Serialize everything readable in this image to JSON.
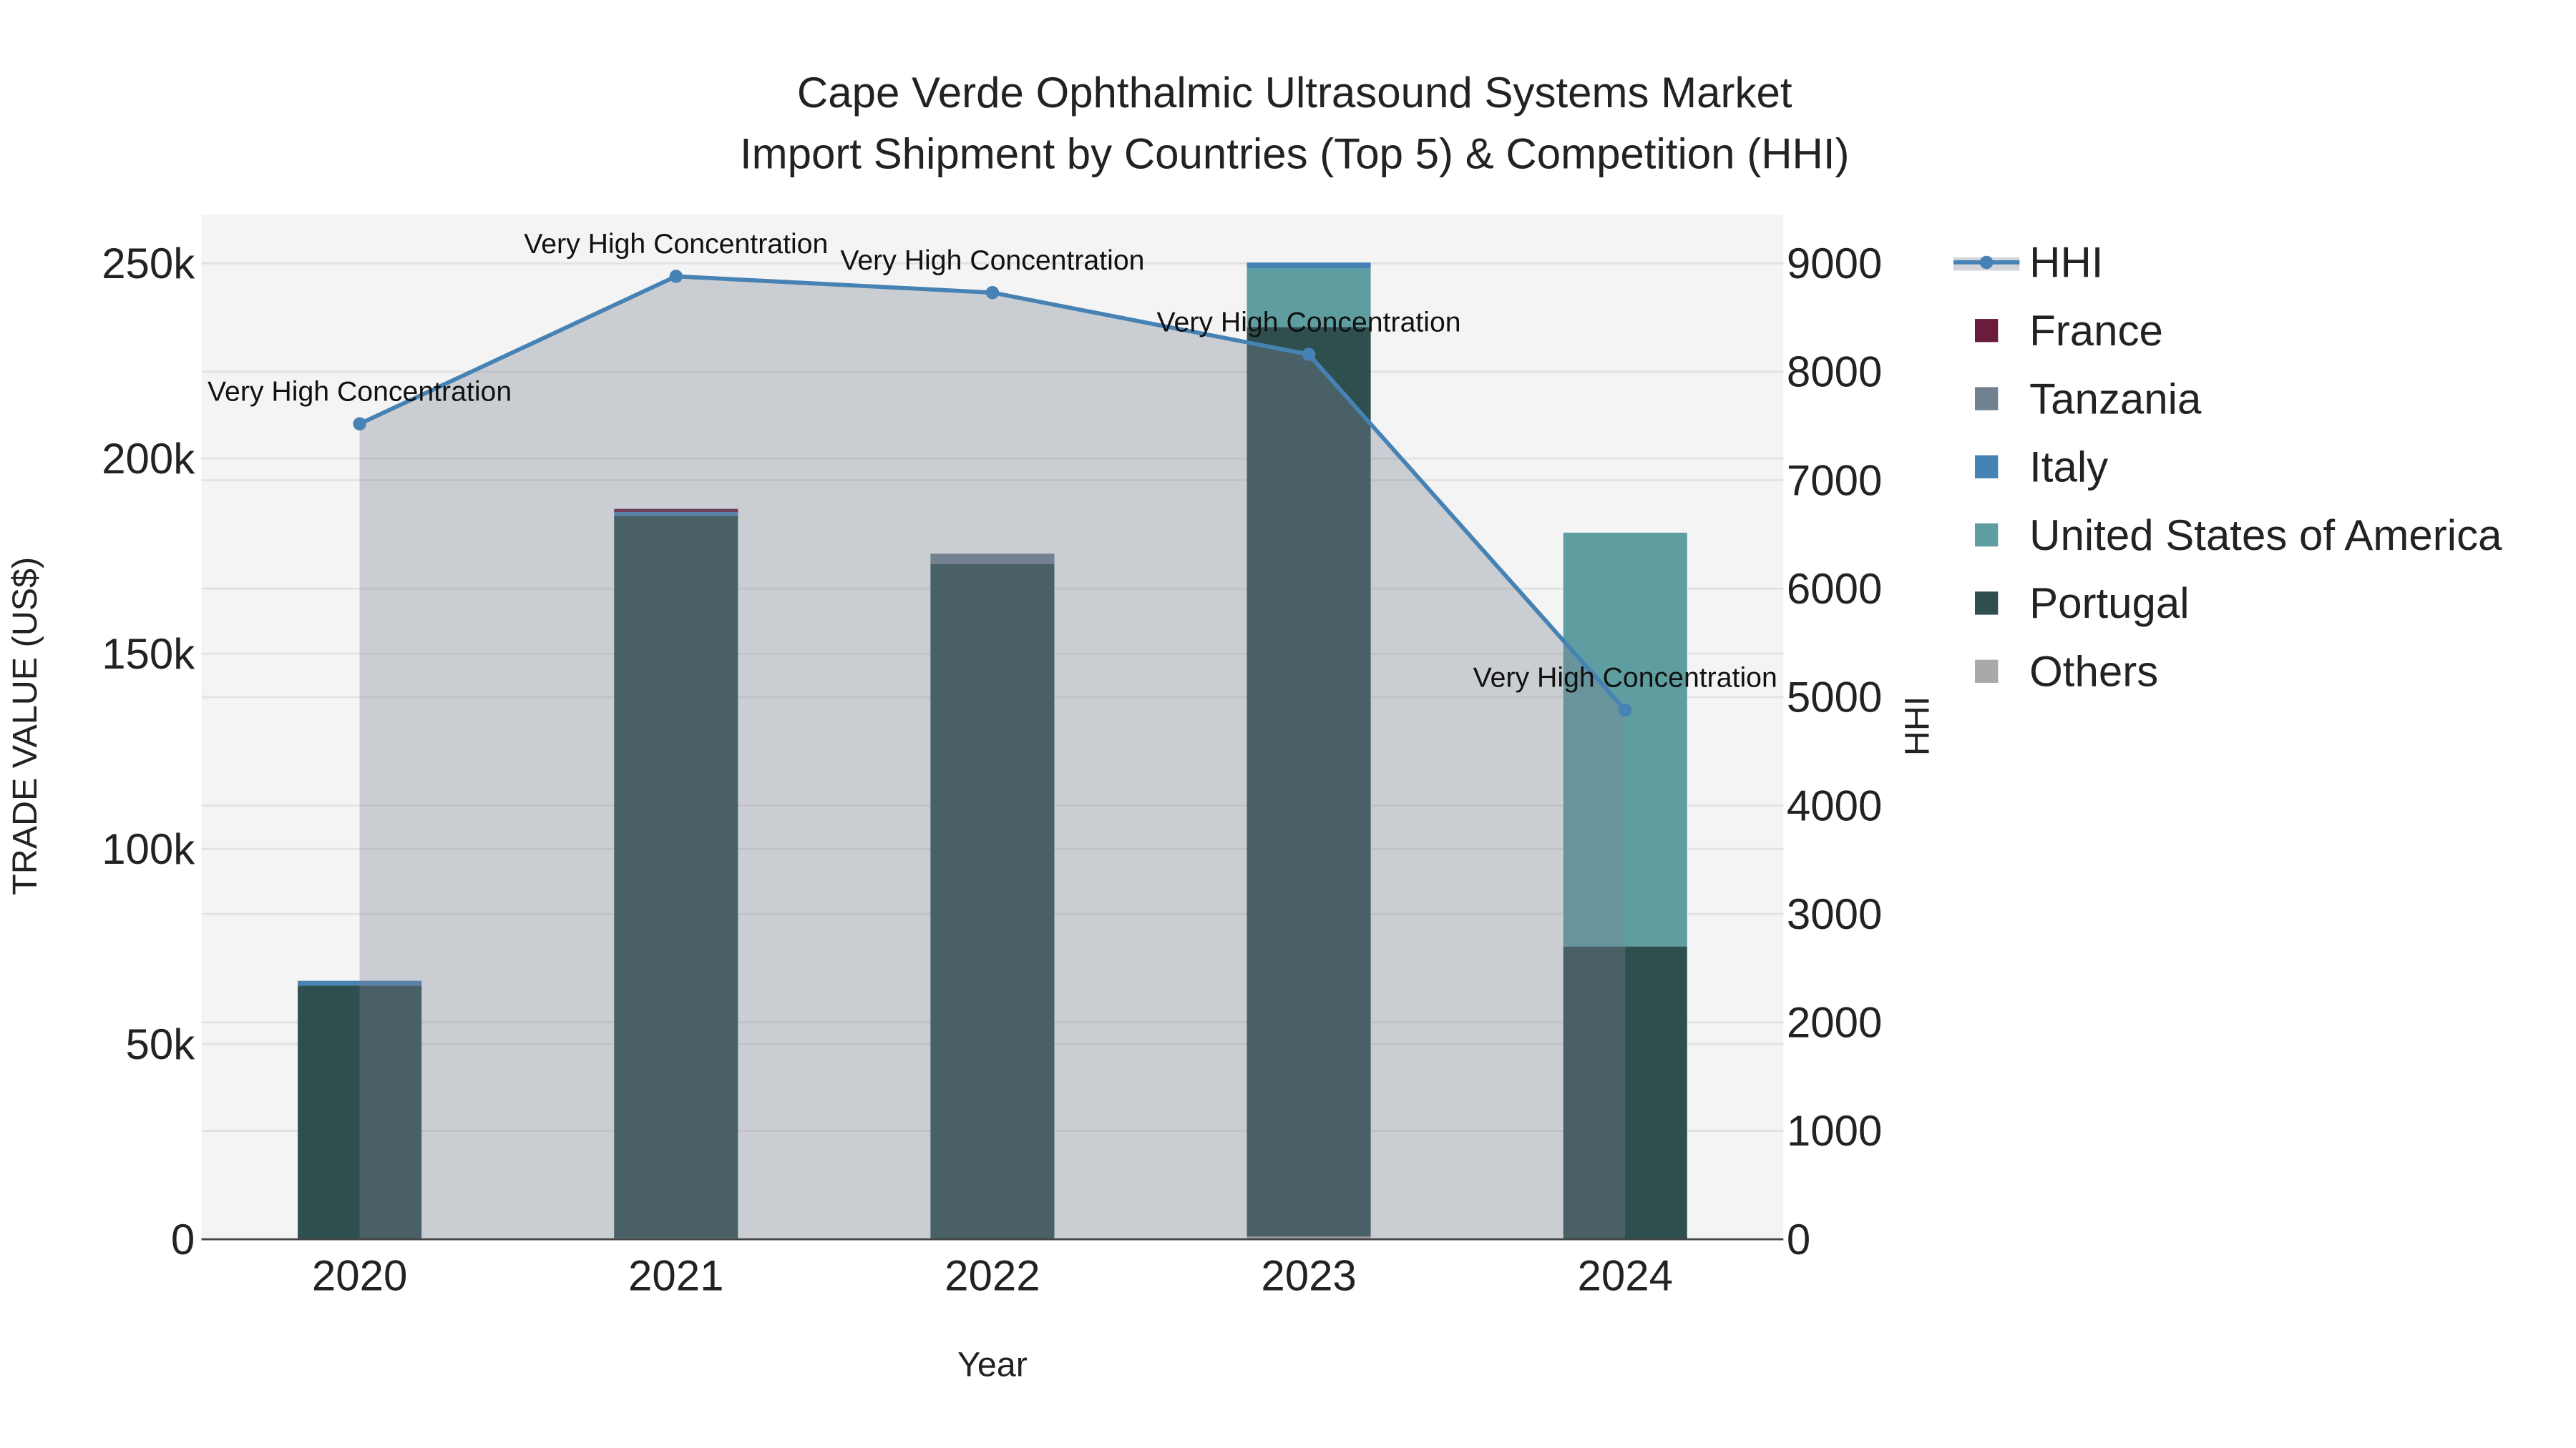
{
  "chart_data": {
    "type": "bar",
    "title_line1": "Cape Verde Ophthalmic Ultrasound Systems Market",
    "title_line2": "Import Shipment by Countries (Top 5) & Competition (HHI)",
    "xlabel": "Year",
    "ylabel": "TRADE VALUE (US$)",
    "y2label": "HHI",
    "categories": [
      "2020",
      "2021",
      "2022",
      "2023",
      "2024"
    ],
    "ylim": [
      0,
      262500
    ],
    "y2lim": [
      0,
      9450
    ],
    "yticks": [
      0,
      50000,
      100000,
      150000,
      200000,
      250000
    ],
    "ytick_labels": [
      "0",
      "50k",
      "100k",
      "150k",
      "200k",
      "250k"
    ],
    "y2ticks": [
      0,
      1000,
      2000,
      3000,
      4000,
      5000,
      6000,
      7000,
      8000,
      9000
    ],
    "y2tick_labels": [
      "0",
      "1000",
      "2000",
      "3000",
      "4000",
      "5000",
      "6000",
      "7000",
      "8000",
      "9000"
    ],
    "series": [
      {
        "name": "Others",
        "color": "#a9a9a9",
        "values": [
          0,
          300,
          0,
          700,
          0
        ]
      },
      {
        "name": "Portugal",
        "color": "#2f4f4f",
        "values": [
          65000,
          185000,
          173000,
          233000,
          75000
        ]
      },
      {
        "name": "United States of America",
        "color": "#5f9ea0",
        "values": [
          0,
          0,
          0,
          15000,
          106000
        ]
      },
      {
        "name": "Italy",
        "color": "#4682b4",
        "values": [
          1200,
          1000,
          0,
          1500,
          0
        ]
      },
      {
        "name": "Tanzania",
        "color": "#708090",
        "values": [
          0,
          0,
          2600,
          0,
          0
        ]
      },
      {
        "name": "France",
        "color": "#6b1c3c",
        "values": [
          0,
          800,
          0,
          0,
          0
        ]
      }
    ],
    "hhi": {
      "name": "HHI",
      "color": "#4682b4",
      "values": [
        7520,
        8880,
        8730,
        8160,
        4880
      ],
      "annotations": [
        "Very High Concentration",
        "Very High Concentration",
        "Very High Concentration",
        "Very High Concentration",
        "Very High Concentration"
      ]
    },
    "legend": {
      "placement": "right",
      "items": [
        "HHI",
        "France",
        "Tanzania",
        "Italy",
        "United States of America",
        "Portugal",
        "Others"
      ]
    },
    "grid": true
  }
}
